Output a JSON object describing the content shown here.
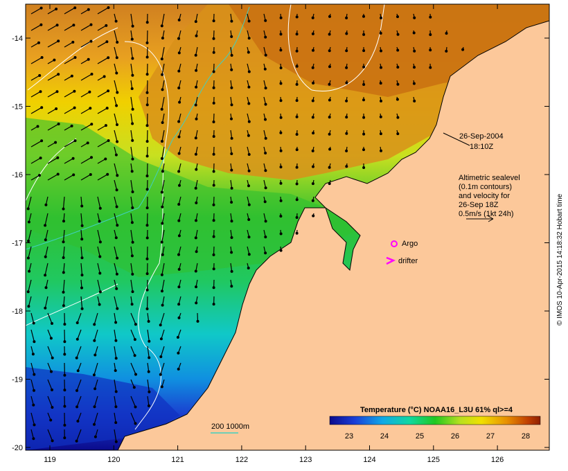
{
  "map": {
    "date_line1": "26-Sep-2004",
    "date_line2": "18:10Z",
    "legend_text": {
      "line1": "Altimetric sealevel",
      "line2": "(0.1m contours)",
      "line3": "and velocity for",
      "line4": "26-Sep 18Z",
      "line5": "0.5m/s (1kt 24h)"
    },
    "argo_label": "Argo",
    "drifter_label": "drifter",
    "bathy_label": "200  1000m",
    "colorbar": {
      "title": "Temperature (°C) NOAA16_L3U 61% ql>=4",
      "ticks": [
        "23",
        "24",
        "25",
        "26",
        "27",
        "28"
      ]
    },
    "y_ticks": [
      "-14",
      "-15",
      "-16",
      "-17",
      "-18",
      "-19",
      "-20"
    ],
    "x_ticks": [
      "119",
      "120",
      "121",
      "122",
      "123",
      "124",
      "125",
      "126"
    ],
    "credit": "© IMOS 10-Apr-2015 14:18:32 Hobart time",
    "colors": {
      "land": "#fcc89a",
      "argo": "#ff00ff",
      "drifter": "#ff00ff",
      "contour": "#ffffff",
      "bathy_200": "#40d0c0"
    }
  }
}
